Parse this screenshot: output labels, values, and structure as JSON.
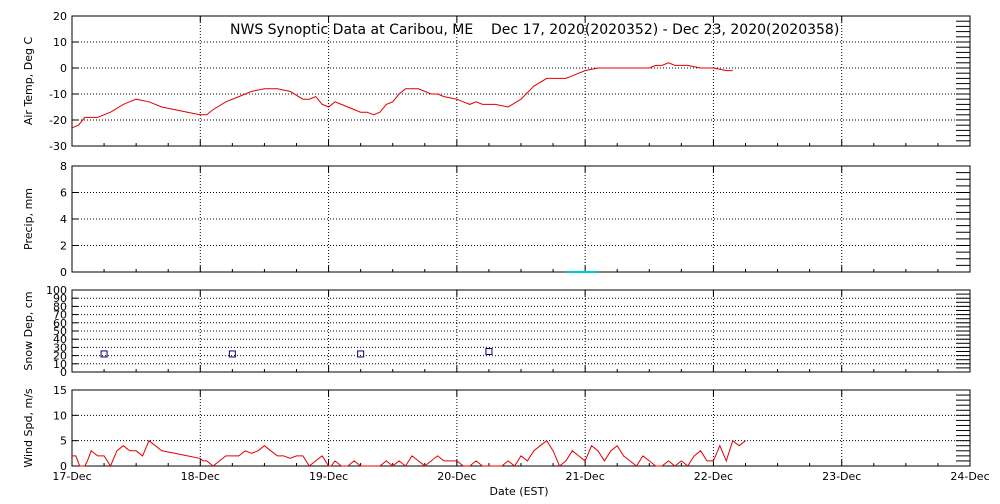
{
  "title": "NWS Synoptic Data at Caribou, ME    Dec 17, 2020(2020352) - Dec 23, 2020(2020358)",
  "xlabel": "Date (EST)",
  "x_ticks": [
    "17-Dec",
    "18-Dec",
    "19-Dec",
    "20-Dec",
    "21-Dec",
    "22-Dec",
    "23-Dec",
    "24-Dec"
  ],
  "chart_data": [
    {
      "type": "line",
      "name_key": "air_temp",
      "ylabel": "Air Temp, Deg C",
      "ylim": [
        -30,
        20
      ],
      "yticks": [
        -30,
        -20,
        -10,
        0,
        10,
        20
      ],
      "color": "#e00000",
      "grid": true,
      "x": [
        0.0,
        0.05,
        0.1,
        0.2,
        0.3,
        0.4,
        0.5,
        0.6,
        0.7,
        0.8,
        0.9,
        1.0,
        1.05,
        1.1,
        1.2,
        1.3,
        1.4,
        1.5,
        1.6,
        1.7,
        1.8,
        1.85,
        1.9,
        1.95,
        2.0,
        2.05,
        2.1,
        2.15,
        2.2,
        2.25,
        2.3,
        2.35,
        2.4,
        2.45,
        2.5,
        2.55,
        2.6,
        2.7,
        2.8,
        2.85,
        2.9,
        3.0,
        3.05,
        3.1,
        3.15,
        3.2,
        3.25,
        3.3,
        3.4,
        3.5,
        3.6,
        3.7,
        3.8,
        3.85,
        3.9,
        4.0,
        4.1,
        4.2,
        4.3,
        4.4,
        4.5,
        4.55,
        4.6,
        4.65,
        4.7,
        4.8,
        4.9,
        5.0,
        5.1,
        5.15
      ],
      "values": [
        -23,
        -22,
        -19,
        -19,
        -17,
        -14,
        -12,
        -13,
        -15,
        -16,
        -17,
        -18,
        -18,
        -16,
        -13,
        -11,
        -9,
        -8,
        -8,
        -9,
        -12,
        -12,
        -11,
        -14,
        -15,
        -13,
        -14,
        -15,
        -16,
        -17,
        -17,
        -18,
        -17,
        -14,
        -13,
        -10,
        -8,
        -8,
        -10,
        -10,
        -11,
        -12,
        -13,
        -14,
        -13,
        -14,
        -14,
        -14,
        -15,
        -12,
        -7,
        -4,
        -4,
        -4,
        -3,
        -1,
        0,
        0,
        0,
        0,
        0,
        1,
        1,
        2,
        1,
        1,
        0,
        0,
        -1,
        -1
      ],
      "render_y_offset": 0
    },
    {
      "type": "line",
      "name_key": "precip",
      "ylabel": "Precip, mm",
      "ylim": [
        0,
        8
      ],
      "yticks": [
        0,
        2,
        4,
        6,
        8
      ],
      "color": "#00cccc",
      "grid": true,
      "x": [
        3.85,
        4.1
      ],
      "values": [
        0,
        0
      ]
    },
    {
      "type": "scatter",
      "name_key": "snow_depth",
      "ylabel": "Snow Dep, cm",
      "ylim": [
        0,
        100
      ],
      "yticks": [
        0,
        10,
        20,
        30,
        40,
        50,
        60,
        70,
        80,
        90,
        100
      ],
      "color": "#000080",
      "grid": true,
      "x": [
        0.25,
        1.25,
        2.25,
        3.25
      ],
      "values": [
        22,
        22,
        22,
        25
      ]
    },
    {
      "type": "line",
      "name_key": "wind_speed",
      "ylabel": "Wind Spd, m/s",
      "ylim": [
        0,
        15
      ],
      "yticks": [
        0,
        5,
        10,
        15
      ],
      "color": "#e00000",
      "grid": true,
      "x": [
        0.0,
        0.03,
        0.06,
        0.08,
        0.1,
        0.12,
        0.15,
        0.2,
        0.25,
        0.3,
        0.35,
        0.4,
        0.45,
        0.5,
        0.55,
        0.6,
        0.7,
        0.8,
        0.9,
        1.0,
        1.02,
        1.05,
        1.1,
        1.15,
        1.2,
        1.25,
        1.3,
        1.35,
        1.4,
        1.45,
        1.5,
        1.55,
        1.6,
        1.65,
        1.7,
        1.75,
        1.8,
        1.85,
        1.9,
        1.95,
        2.0,
        2.02,
        2.05,
        2.1,
        2.15,
        2.2,
        2.25,
        2.3,
        2.35,
        2.4,
        2.45,
        2.5,
        2.55,
        2.6,
        2.65,
        2.7,
        2.75,
        2.8,
        2.85,
        2.9,
        2.95,
        3.0,
        3.05,
        3.1,
        3.15,
        3.2,
        3.25,
        3.3,
        3.35,
        3.4,
        3.45,
        3.5,
        3.55,
        3.6,
        3.65,
        3.7,
        3.75,
        3.8,
        3.85,
        3.9,
        3.95,
        4.0,
        4.05,
        4.1,
        4.15,
        4.2,
        4.25,
        4.3,
        4.35,
        4.4,
        4.45,
        4.5,
        4.55,
        4.6,
        4.65,
        4.7,
        4.75,
        4.8,
        4.85,
        4.9,
        4.95,
        5.0,
        5.05,
        5.1
      ],
      "values": [
        2,
        2,
        0,
        0,
        0,
        1,
        3,
        2,
        2,
        0,
        3,
        4,
        3,
        3,
        2,
        5,
        3,
        2.5,
        2,
        1.5,
        1,
        1,
        0,
        1,
        2,
        2,
        2,
        3,
        2.5,
        3,
        4,
        3,
        2,
        2,
        1.5,
        2,
        2,
        0,
        1,
        2,
        0,
        0,
        1,
        0,
        0,
        1,
        0,
        0,
        0,
        0,
        1,
        0,
        1,
        0,
        2,
        1,
        0,
        1,
        2,
        1,
        1,
        1,
        0,
        0,
        1,
        0,
        0,
        0,
        0,
        1,
        0,
        2,
        1,
        3,
        4,
        5,
        3,
        0,
        1,
        3,
        2,
        1,
        4,
        3,
        1,
        3,
        4,
        2,
        1,
        0,
        2,
        1,
        0,
        0,
        1,
        0,
        1,
        0,
        2,
        3,
        1,
        1,
        4,
        1
      ],
      "extra_points_tail": [
        {
          "x": 5.15,
          "v": 5
        },
        {
          "x": 5.2,
          "v": 4
        },
        {
          "x": 5.25,
          "v": 5
        }
      ]
    }
  ]
}
